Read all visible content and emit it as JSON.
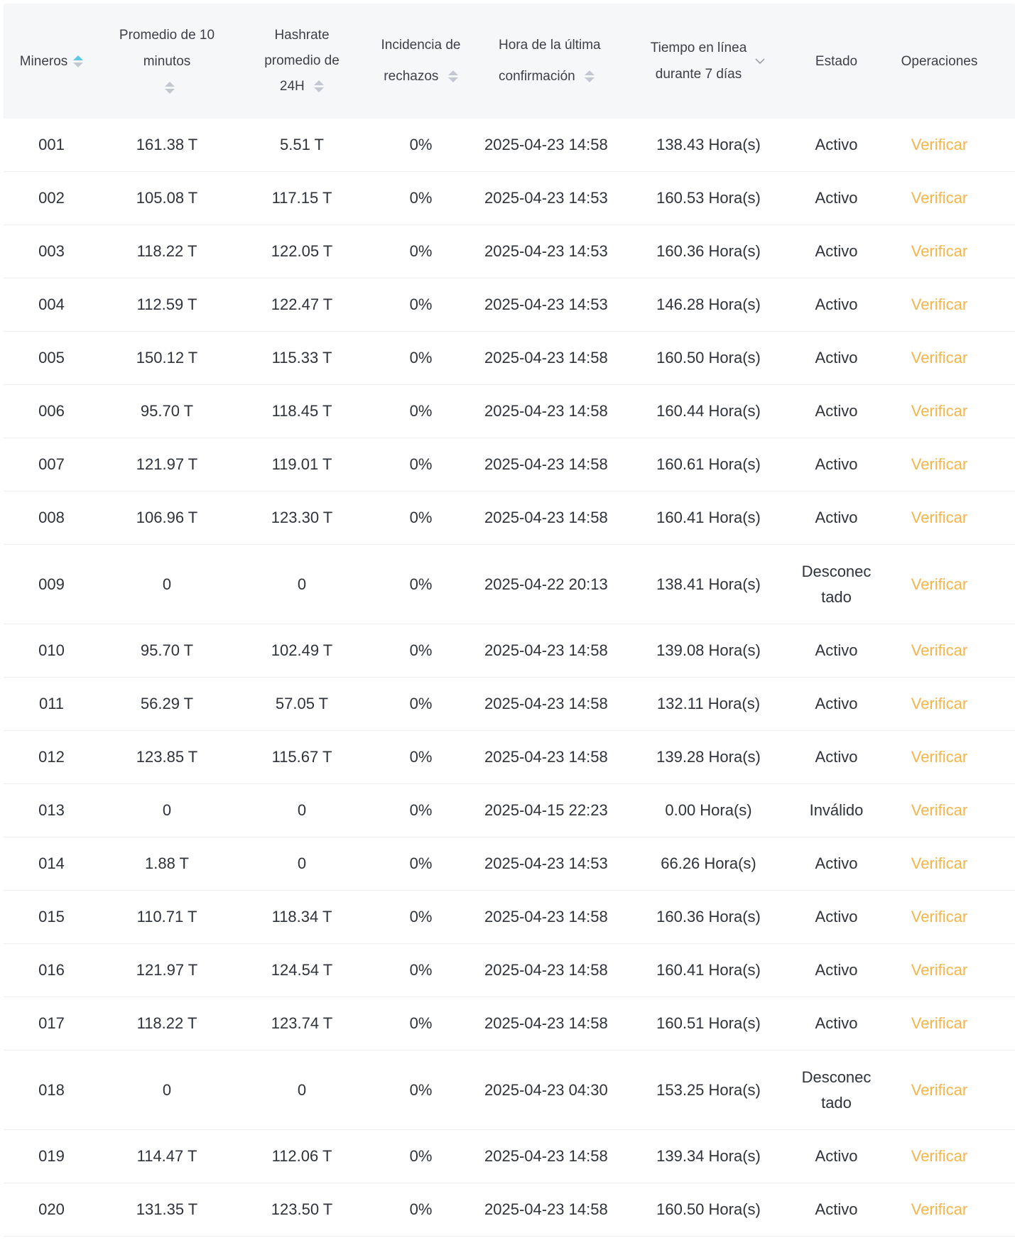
{
  "columns": [
    {
      "lines": [
        "Mineros"
      ],
      "sort": "asc"
    },
    {
      "lines": [
        "Promedio de 10 minutos"
      ],
      "sort": "none"
    },
    {
      "lines": [
        "Hashrate",
        "promedio de",
        "24H"
      ],
      "sort": "none"
    },
    {
      "lines": [
        "Incidencia de",
        "rechazos"
      ],
      "sort": "none"
    },
    {
      "lines": [
        "Hora de la última",
        "confirmación"
      ],
      "sort": "none"
    },
    {
      "lines": [
        "Tiempo en línea",
        "durante 7 días"
      ],
      "filter": "chevron-down"
    },
    {
      "lines": [
        "Estado"
      ]
    },
    {
      "lines": [
        "Operaciones"
      ]
    }
  ],
  "colors": {
    "header_bg": "#f6f7f9",
    "accent": "#5ac8e6",
    "action": "#f4b54a"
  },
  "rows": [
    {
      "id": "001",
      "avg10m": "161.38 T",
      "avg24h": "5.51 T",
      "reject": "0%",
      "last": "2025-04-23 14:58",
      "online": "138.43 Hora(s)",
      "state": "Activo",
      "op": "Verificar"
    },
    {
      "id": "002",
      "avg10m": "105.08 T",
      "avg24h": "117.15 T",
      "reject": "0%",
      "last": "2025-04-23 14:53",
      "online": "160.53 Hora(s)",
      "state": "Activo",
      "op": "Verificar"
    },
    {
      "id": "003",
      "avg10m": "118.22 T",
      "avg24h": "122.05 T",
      "reject": "0%",
      "last": "2025-04-23 14:53",
      "online": "160.36 Hora(s)",
      "state": "Activo",
      "op": "Verificar"
    },
    {
      "id": "004",
      "avg10m": "112.59 T",
      "avg24h": "122.47 T",
      "reject": "0%",
      "last": "2025-04-23 14:53",
      "online": "146.28 Hora(s)",
      "state": "Activo",
      "op": "Verificar"
    },
    {
      "id": "005",
      "avg10m": "150.12 T",
      "avg24h": "115.33 T",
      "reject": "0%",
      "last": "2025-04-23 14:58",
      "online": "160.50 Hora(s)",
      "state": "Activo",
      "op": "Verificar"
    },
    {
      "id": "006",
      "avg10m": "95.70 T",
      "avg24h": "118.45 T",
      "reject": "0%",
      "last": "2025-04-23 14:58",
      "online": "160.44 Hora(s)",
      "state": "Activo",
      "op": "Verificar"
    },
    {
      "id": "007",
      "avg10m": "121.97 T",
      "avg24h": "119.01 T",
      "reject": "0%",
      "last": "2025-04-23 14:58",
      "online": "160.61 Hora(s)",
      "state": "Activo",
      "op": "Verificar"
    },
    {
      "id": "008",
      "avg10m": "106.96 T",
      "avg24h": "123.30 T",
      "reject": "0%",
      "last": "2025-04-23 14:58",
      "online": "160.41 Hora(s)",
      "state": "Activo",
      "op": "Verificar"
    },
    {
      "id": "009",
      "avg10m": "0",
      "avg24h": "0",
      "reject": "0%",
      "last": "2025-04-22 20:13",
      "online": "138.41 Hora(s)",
      "state": "Desconec tado",
      "op": "Verificar",
      "tall": true
    },
    {
      "id": "010",
      "avg10m": "95.70 T",
      "avg24h": "102.49 T",
      "reject": "0%",
      "last": "2025-04-23 14:58",
      "online": "139.08 Hora(s)",
      "state": "Activo",
      "op": "Verificar"
    },
    {
      "id": "011",
      "avg10m": "56.29 T",
      "avg24h": "57.05 T",
      "reject": "0%",
      "last": "2025-04-23 14:58",
      "online": "132.11 Hora(s)",
      "state": "Activo",
      "op": "Verificar"
    },
    {
      "id": "012",
      "avg10m": "123.85 T",
      "avg24h": "115.67 T",
      "reject": "0%",
      "last": "2025-04-23 14:58",
      "online": "139.28 Hora(s)",
      "state": "Activo",
      "op": "Verificar"
    },
    {
      "id": "013",
      "avg10m": "0",
      "avg24h": "0",
      "reject": "0%",
      "last": "2025-04-15 22:23",
      "online": "0.00 Hora(s)",
      "state": "Inválido",
      "op": "Verificar"
    },
    {
      "id": "014",
      "avg10m": "1.88 T",
      "avg24h": "0",
      "reject": "0%",
      "last": "2025-04-23 14:53",
      "online": "66.26 Hora(s)",
      "state": "Activo",
      "op": "Verificar"
    },
    {
      "id": "015",
      "avg10m": "110.71 T",
      "avg24h": "118.34 T",
      "reject": "0%",
      "last": "2025-04-23 14:58",
      "online": "160.36 Hora(s)",
      "state": "Activo",
      "op": "Verificar"
    },
    {
      "id": "016",
      "avg10m": "121.97 T",
      "avg24h": "124.54 T",
      "reject": "0%",
      "last": "2025-04-23 14:58",
      "online": "160.41 Hora(s)",
      "state": "Activo",
      "op": "Verificar"
    },
    {
      "id": "017",
      "avg10m": "118.22 T",
      "avg24h": "123.74 T",
      "reject": "0%",
      "last": "2025-04-23 14:58",
      "online": "160.51 Hora(s)",
      "state": "Activo",
      "op": "Verificar"
    },
    {
      "id": "018",
      "avg10m": "0",
      "avg24h": "0",
      "reject": "0%",
      "last": "2025-04-23 04:30",
      "online": "153.25 Hora(s)",
      "state": "Desconec tado",
      "op": "Verificar",
      "tall": true
    },
    {
      "id": "019",
      "avg10m": "114.47 T",
      "avg24h": "112.06 T",
      "reject": "0%",
      "last": "2025-04-23 14:58",
      "online": "139.34 Hora(s)",
      "state": "Activo",
      "op": "Verificar"
    },
    {
      "id": "020",
      "avg10m": "131.35 T",
      "avg24h": "123.50 T",
      "reject": "0%",
      "last": "2025-04-23 14:58",
      "online": "160.50 Hora(s)",
      "state": "Activo",
      "op": "Verificar"
    }
  ]
}
